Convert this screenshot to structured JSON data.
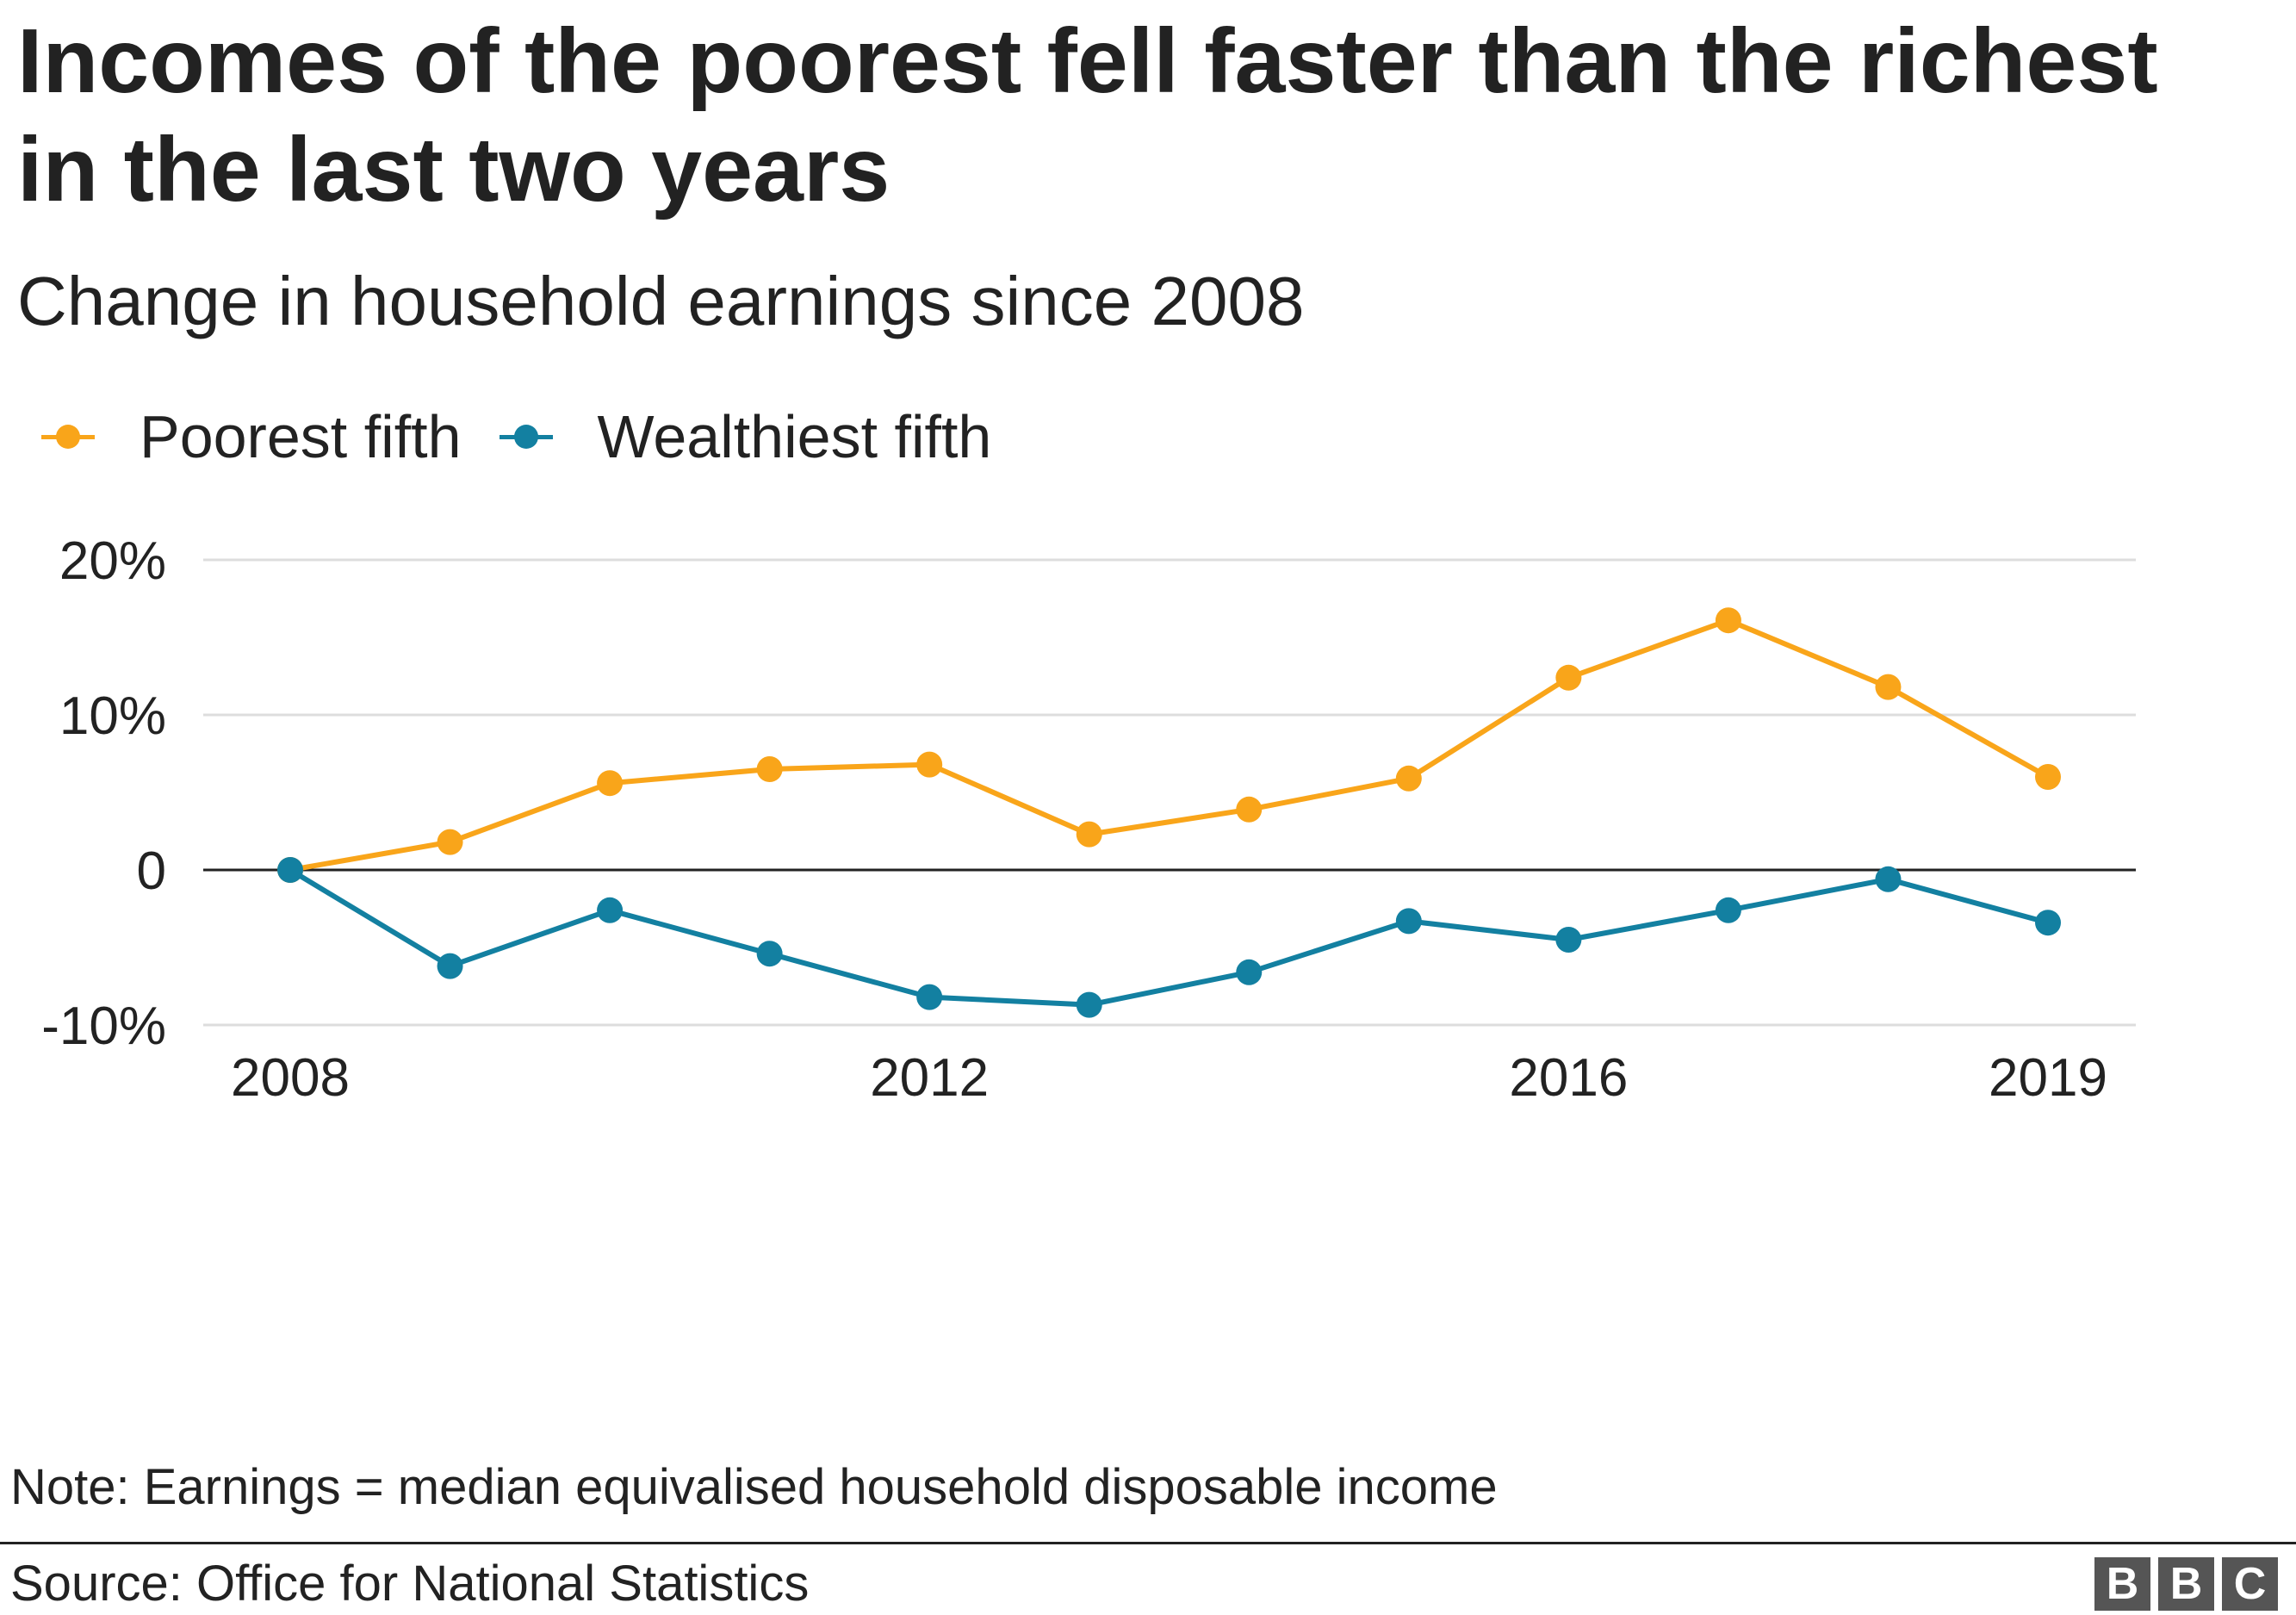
{
  "header": {
    "title": "Incomes of the poorest fell faster than the richest in the last two years",
    "subtitle": "Change in household earnings since 2008"
  },
  "legend": {
    "items": [
      {
        "label": "Poorest fifth",
        "color": "#f9a51a"
      },
      {
        "label": "Wealthiest fifth",
        "color": "#1380a1"
      }
    ]
  },
  "footer": {
    "note": "Note: Earnings = median equivalised household disposable income",
    "source": "Source: Office for National Statistics",
    "logo": [
      "B",
      "B",
      "C"
    ]
  },
  "chart_data": {
    "type": "line",
    "title": "Incomes of the poorest fell faster than the richest in the last two years",
    "subtitle": "Change in household earnings since 2008",
    "x": [
      2008,
      2009,
      2010,
      2011,
      2012,
      2013,
      2014,
      2015,
      2016,
      2017,
      2018,
      2019
    ],
    "x_ticks": [
      2008,
      2012,
      2016,
      2019
    ],
    "x_tick_labels": [
      "2008",
      "2012",
      "2016",
      "2019"
    ],
    "y_ticks": [
      -10,
      0,
      10,
      20
    ],
    "y_tick_labels": [
      "-10%",
      "0",
      "10%",
      "20%"
    ],
    "ylim": [
      -10,
      20
    ],
    "xlim": [
      2008,
      2019
    ],
    "grid": "horizontal",
    "legend_position": "top-left",
    "series": [
      {
        "name": "Poorest fifth",
        "color": "#f9a51a",
        "values": [
          0,
          1.8,
          5.6,
          6.5,
          6.8,
          2.3,
          3.9,
          5.9,
          12.4,
          16.1,
          11.8,
          6.0
        ]
      },
      {
        "name": "Wealthiest fifth",
        "color": "#1380a1",
        "values": [
          0,
          -6.2,
          -2.6,
          -5.4,
          -8.2,
          -8.7,
          -6.6,
          -3.3,
          -4.5,
          -2.6,
          -0.6,
          -3.4
        ]
      }
    ]
  }
}
